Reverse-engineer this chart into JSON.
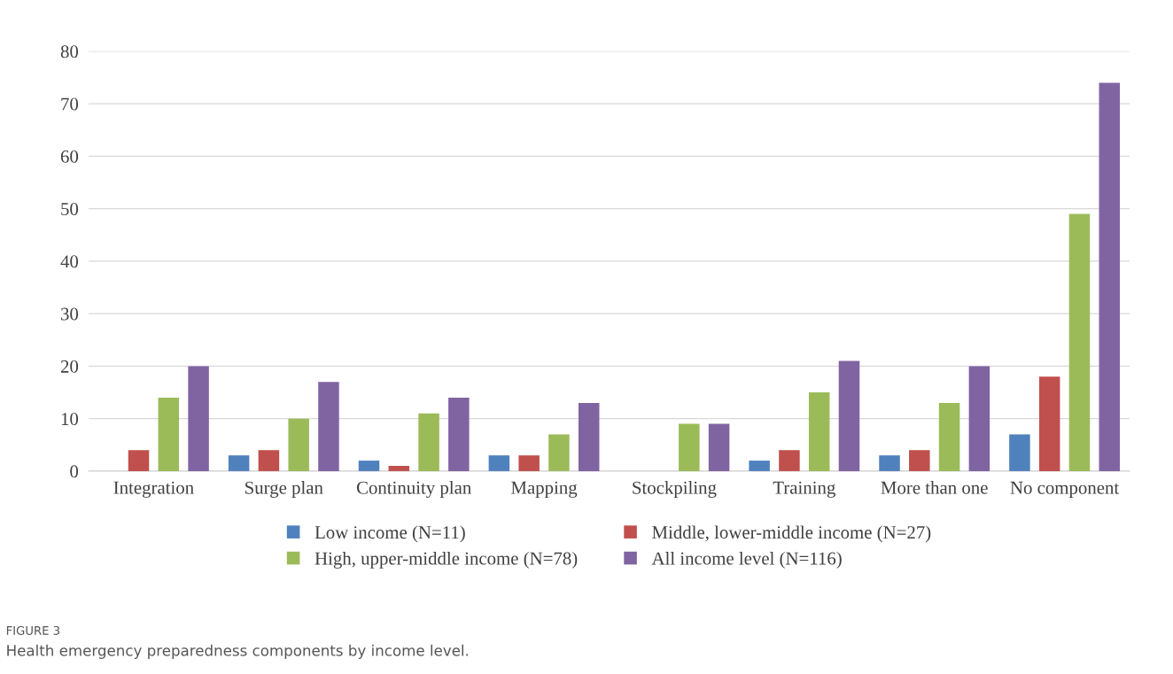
{
  "chart_data": {
    "type": "bar",
    "categories": [
      "Integration",
      "Surge plan",
      "Continuity plan",
      "Mapping",
      "Stockpiling",
      "Training",
      "More than one",
      "No component"
    ],
    "series": [
      {
        "name": "Low income (N=11)",
        "color": "#4f81bd",
        "values": [
          0,
          3,
          2,
          3,
          0,
          2,
          3,
          7
        ]
      },
      {
        "name": "Middle, lower-middle income (N=27)",
        "color": "#c0504d",
        "values": [
          4,
          4,
          1,
          3,
          0,
          4,
          4,
          18
        ]
      },
      {
        "name": "High, upper-middle income (N=78)",
        "color": "#9bbb59",
        "values": [
          14,
          10,
          11,
          7,
          9,
          15,
          13,
          49
        ]
      },
      {
        "name": "All income level (N=116)",
        "color": "#8064a2",
        "values": [
          20,
          17,
          14,
          13,
          9,
          21,
          20,
          74
        ]
      }
    ],
    "ylim": [
      0,
      80
    ],
    "yticks": [
      0,
      10,
      20,
      30,
      40,
      50,
      60,
      70,
      80
    ],
    "grid": "y",
    "legend": "bottom",
    "annotations": [
      "FIGURE 3",
      "Health emergency preparedness components by income level."
    ]
  }
}
